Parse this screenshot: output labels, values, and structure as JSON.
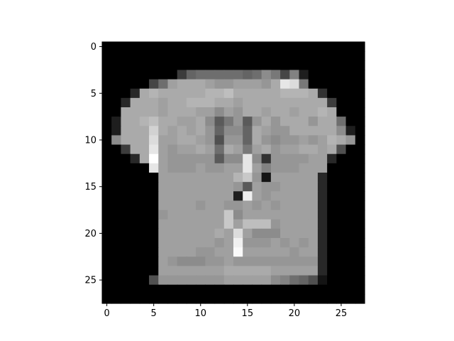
{
  "chart_data": {
    "type": "heatmap",
    "title": "",
    "xlabel": "",
    "ylabel": "",
    "colormap": "gray",
    "value_range": [
      0,
      255
    ],
    "rows": 28,
    "cols": 28,
    "x_ticks": [
      0,
      5,
      10,
      15,
      20,
      25
    ],
    "y_ticks": [
      0,
      5,
      10,
      15,
      20,
      25
    ],
    "x_tick_labels": [
      "0",
      "5",
      "10",
      "15",
      "20",
      "25"
    ],
    "y_tick_labels": [
      "0",
      "5",
      "10",
      "15",
      "20",
      "25"
    ],
    "xlim": [
      -0.5,
      27.5
    ],
    "ylim": [
      27.5,
      -0.5
    ],
    "grid": false,
    "legend": "none",
    "values": [
      [
        0,
        0,
        0,
        0,
        0,
        0,
        0,
        0,
        0,
        0,
        0,
        0,
        0,
        0,
        0,
        0,
        0,
        0,
        0,
        0,
        0,
        0,
        0,
        0,
        0,
        0,
        0,
        0
      ],
      [
        0,
        0,
        0,
        0,
        0,
        0,
        0,
        0,
        0,
        0,
        0,
        0,
        0,
        0,
        0,
        0,
        0,
        0,
        0,
        0,
        0,
        0,
        0,
        0,
        0,
        0,
        0,
        0
      ],
      [
        0,
        0,
        0,
        0,
        0,
        0,
        0,
        0,
        0,
        0,
        0,
        0,
        0,
        0,
        0,
        0,
        0,
        0,
        0,
        0,
        0,
        0,
        0,
        0,
        0,
        0,
        0,
        0
      ],
      [
        0,
        0,
        0,
        0,
        0,
        0,
        0,
        0,
        60,
        100,
        110,
        110,
        110,
        110,
        110,
        100,
        110,
        140,
        120,
        70,
        130,
        30,
        0,
        0,
        0,
        0,
        0,
        0
      ],
      [
        0,
        0,
        0,
        0,
        0,
        70,
        110,
        160,
        170,
        170,
        170,
        160,
        150,
        150,
        160,
        160,
        160,
        150,
        170,
        230,
        220,
        120,
        0,
        0,
        0,
        0,
        0,
        0
      ],
      [
        0,
        0,
        0,
        40,
        170,
        180,
        170,
        170,
        170,
        170,
        170,
        180,
        180,
        190,
        170,
        170,
        170,
        170,
        170,
        180,
        180,
        180,
        170,
        50,
        0,
        0,
        0,
        0
      ],
      [
        0,
        0,
        40,
        170,
        170,
        170,
        160,
        170,
        170,
        180,
        180,
        180,
        170,
        170,
        160,
        170,
        170,
        170,
        170,
        170,
        170,
        170,
        170,
        170,
        60,
        0,
        0,
        0
      ],
      [
        0,
        0,
        170,
        170,
        170,
        170,
        160,
        170,
        170,
        170,
        160,
        160,
        140,
        160,
        150,
        170,
        170,
        160,
        170,
        170,
        160,
        170,
        170,
        180,
        170,
        0,
        0,
        0
      ],
      [
        0,
        30,
        170,
        170,
        180,
        190,
        170,
        170,
        160,
        160,
        170,
        140,
        90,
        120,
        150,
        90,
        150,
        170,
        150,
        170,
        170,
        170,
        150,
        170,
        170,
        110,
        0,
        0
      ],
      [
        0,
        30,
        170,
        170,
        170,
        210,
        170,
        160,
        170,
        160,
        170,
        150,
        100,
        140,
        140,
        100,
        170,
        160,
        150,
        150,
        170,
        170,
        170,
        170,
        170,
        140,
        30,
        0
      ],
      [
        0,
        140,
        170,
        170,
        170,
        220,
        160,
        160,
        170,
        170,
        160,
        150,
        80,
        150,
        150,
        100,
        170,
        150,
        140,
        150,
        150,
        160,
        150,
        160,
        180,
        170,
        150,
        0
      ],
      [
        0,
        0,
        60,
        170,
        170,
        230,
        160,
        150,
        160,
        160,
        170,
        160,
        110,
        170,
        160,
        120,
        160,
        170,
        150,
        160,
        160,
        170,
        170,
        160,
        170,
        80,
        0,
        0
      ],
      [
        0,
        0,
        0,
        40,
        170,
        255,
        160,
        150,
        150,
        150,
        150,
        150,
        90,
        140,
        140,
        230,
        140,
        50,
        150,
        150,
        150,
        150,
        160,
        160,
        40,
        0,
        0,
        0
      ],
      [
        0,
        0,
        0,
        0,
        0,
        230,
        160,
        150,
        150,
        150,
        160,
        150,
        150,
        160,
        160,
        230,
        160,
        130,
        150,
        150,
        150,
        160,
        160,
        160,
        0,
        0,
        0,
        0
      ],
      [
        0,
        0,
        0,
        0,
        0,
        0,
        160,
        160,
        160,
        160,
        160,
        160,
        160,
        160,
        180,
        200,
        150,
        20,
        160,
        160,
        160,
        160,
        160,
        40,
        0,
        0,
        0,
        0
      ],
      [
        0,
        0,
        0,
        0,
        0,
        0,
        160,
        160,
        160,
        160,
        160,
        160,
        160,
        160,
        150,
        90,
        160,
        150,
        150,
        160,
        160,
        160,
        160,
        40,
        0,
        0,
        0,
        0
      ],
      [
        0,
        0,
        0,
        0,
        0,
        0,
        160,
        160,
        160,
        160,
        160,
        160,
        160,
        160,
        30,
        240,
        160,
        150,
        160,
        160,
        160,
        160,
        160,
        40,
        0,
        0,
        0,
        0
      ],
      [
        0,
        0,
        0,
        0,
        0,
        0,
        160,
        160,
        160,
        160,
        150,
        160,
        160,
        150,
        150,
        160,
        150,
        160,
        150,
        160,
        160,
        160,
        160,
        40,
        0,
        0,
        0,
        0
      ],
      [
        0,
        0,
        0,
        0,
        0,
        0,
        150,
        160,
        160,
        160,
        160,
        160,
        160,
        200,
        140,
        160,
        160,
        160,
        160,
        160,
        160,
        160,
        160,
        40,
        0,
        0,
        0,
        0
      ],
      [
        0,
        0,
        0,
        0,
        0,
        0,
        160,
        160,
        160,
        160,
        160,
        160,
        160,
        200,
        160,
        190,
        190,
        190,
        150,
        160,
        160,
        160,
        160,
        40,
        0,
        0,
        0,
        0
      ],
      [
        0,
        0,
        0,
        0,
        0,
        0,
        160,
        160,
        160,
        160,
        160,
        160,
        170,
        160,
        220,
        160,
        140,
        140,
        140,
        160,
        160,
        160,
        160,
        40,
        0,
        0,
        0,
        0
      ],
      [
        0,
        0,
        0,
        0,
        0,
        0,
        160,
        160,
        160,
        160,
        160,
        160,
        150,
        160,
        240,
        150,
        150,
        150,
        160,
        150,
        160,
        150,
        160,
        40,
        0,
        0,
        0,
        0
      ],
      [
        0,
        0,
        0,
        0,
        0,
        0,
        160,
        160,
        160,
        160,
        150,
        150,
        160,
        160,
        250,
        160,
        160,
        160,
        160,
        160,
        150,
        160,
        160,
        40,
        0,
        0,
        0,
        0
      ],
      [
        0,
        0,
        0,
        0,
        0,
        0,
        160,
        150,
        140,
        140,
        140,
        150,
        150,
        160,
        150,
        150,
        150,
        150,
        150,
        150,
        150,
        150,
        150,
        40,
        0,
        0,
        0,
        0
      ],
      [
        0,
        0,
        0,
        0,
        0,
        0,
        160,
        160,
        160,
        160,
        160,
        160,
        160,
        170,
        170,
        170,
        170,
        170,
        160,
        160,
        160,
        160,
        160,
        40,
        0,
        0,
        0,
        0
      ],
      [
        0,
        0,
        0,
        0,
        0,
        80,
        150,
        150,
        150,
        150,
        150,
        150,
        150,
        160,
        160,
        160,
        160,
        160,
        140,
        130,
        110,
        100,
        80,
        20,
        0,
        0,
        0,
        0
      ],
      [
        0,
        0,
        0,
        0,
        0,
        0,
        0,
        0,
        0,
        0,
        0,
        0,
        0,
        0,
        0,
        0,
        0,
        0,
        0,
        0,
        0,
        0,
        0,
        0,
        0,
        0,
        0,
        0
      ],
      [
        0,
        0,
        0,
        0,
        0,
        0,
        0,
        0,
        0,
        0,
        0,
        0,
        0,
        0,
        0,
        0,
        0,
        0,
        0,
        0,
        0,
        0,
        0,
        0,
        0,
        0,
        0,
        0
      ]
    ]
  }
}
